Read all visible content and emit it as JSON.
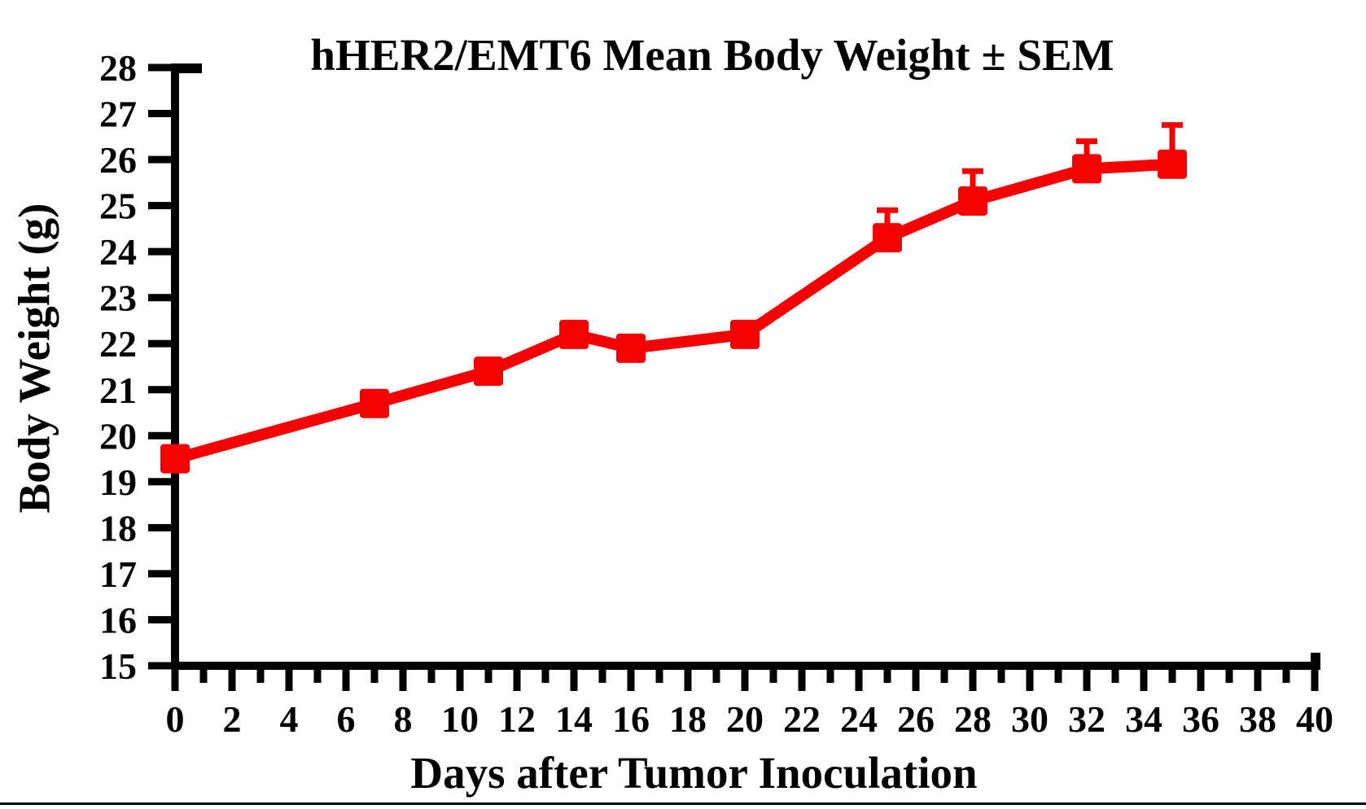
{
  "page": {
    "background": "#ffffff"
  },
  "chart_data": {
    "type": "line",
    "title": "hHER2/EMT6 Mean Body Weight ± SEM",
    "xlabel": "Days after Tumor Inoculation",
    "ylabel": "Body Weight (g)",
    "xlim": [
      0,
      40
    ],
    "ylim": [
      15,
      28
    ],
    "grid": false,
    "legend_position": "none",
    "axis_color": "#000000",
    "x_ticks_labeled": [
      0,
      2,
      4,
      6,
      8,
      10,
      12,
      14,
      16,
      18,
      20,
      22,
      24,
      26,
      28,
      30,
      32,
      34,
      36,
      38,
      40
    ],
    "x_ticks_minor": [
      1,
      3,
      5,
      7,
      9,
      11,
      13,
      15,
      17,
      19,
      21,
      23,
      25,
      27,
      29,
      31,
      33,
      35,
      37,
      39
    ],
    "y_ticks": [
      15,
      16,
      17,
      18,
      19,
      20,
      21,
      22,
      23,
      24,
      25,
      26,
      27,
      28
    ],
    "series": [
      {
        "name": "hHER2/EMT6 mean body weight",
        "color": "#f40000",
        "marker": "square",
        "error_bars": "SEM (upper only shown)",
        "x": [
          0,
          7,
          11,
          14,
          16,
          20,
          25,
          28,
          32,
          35
        ],
        "y": [
          19.5,
          20.7,
          21.4,
          22.2,
          21.9,
          22.2,
          24.3,
          25.1,
          25.8,
          25.9
        ],
        "sem_upper": [
          0,
          0,
          0,
          0,
          0,
          0,
          0.6,
          0.65,
          0.6,
          0.85
        ]
      }
    ]
  }
}
